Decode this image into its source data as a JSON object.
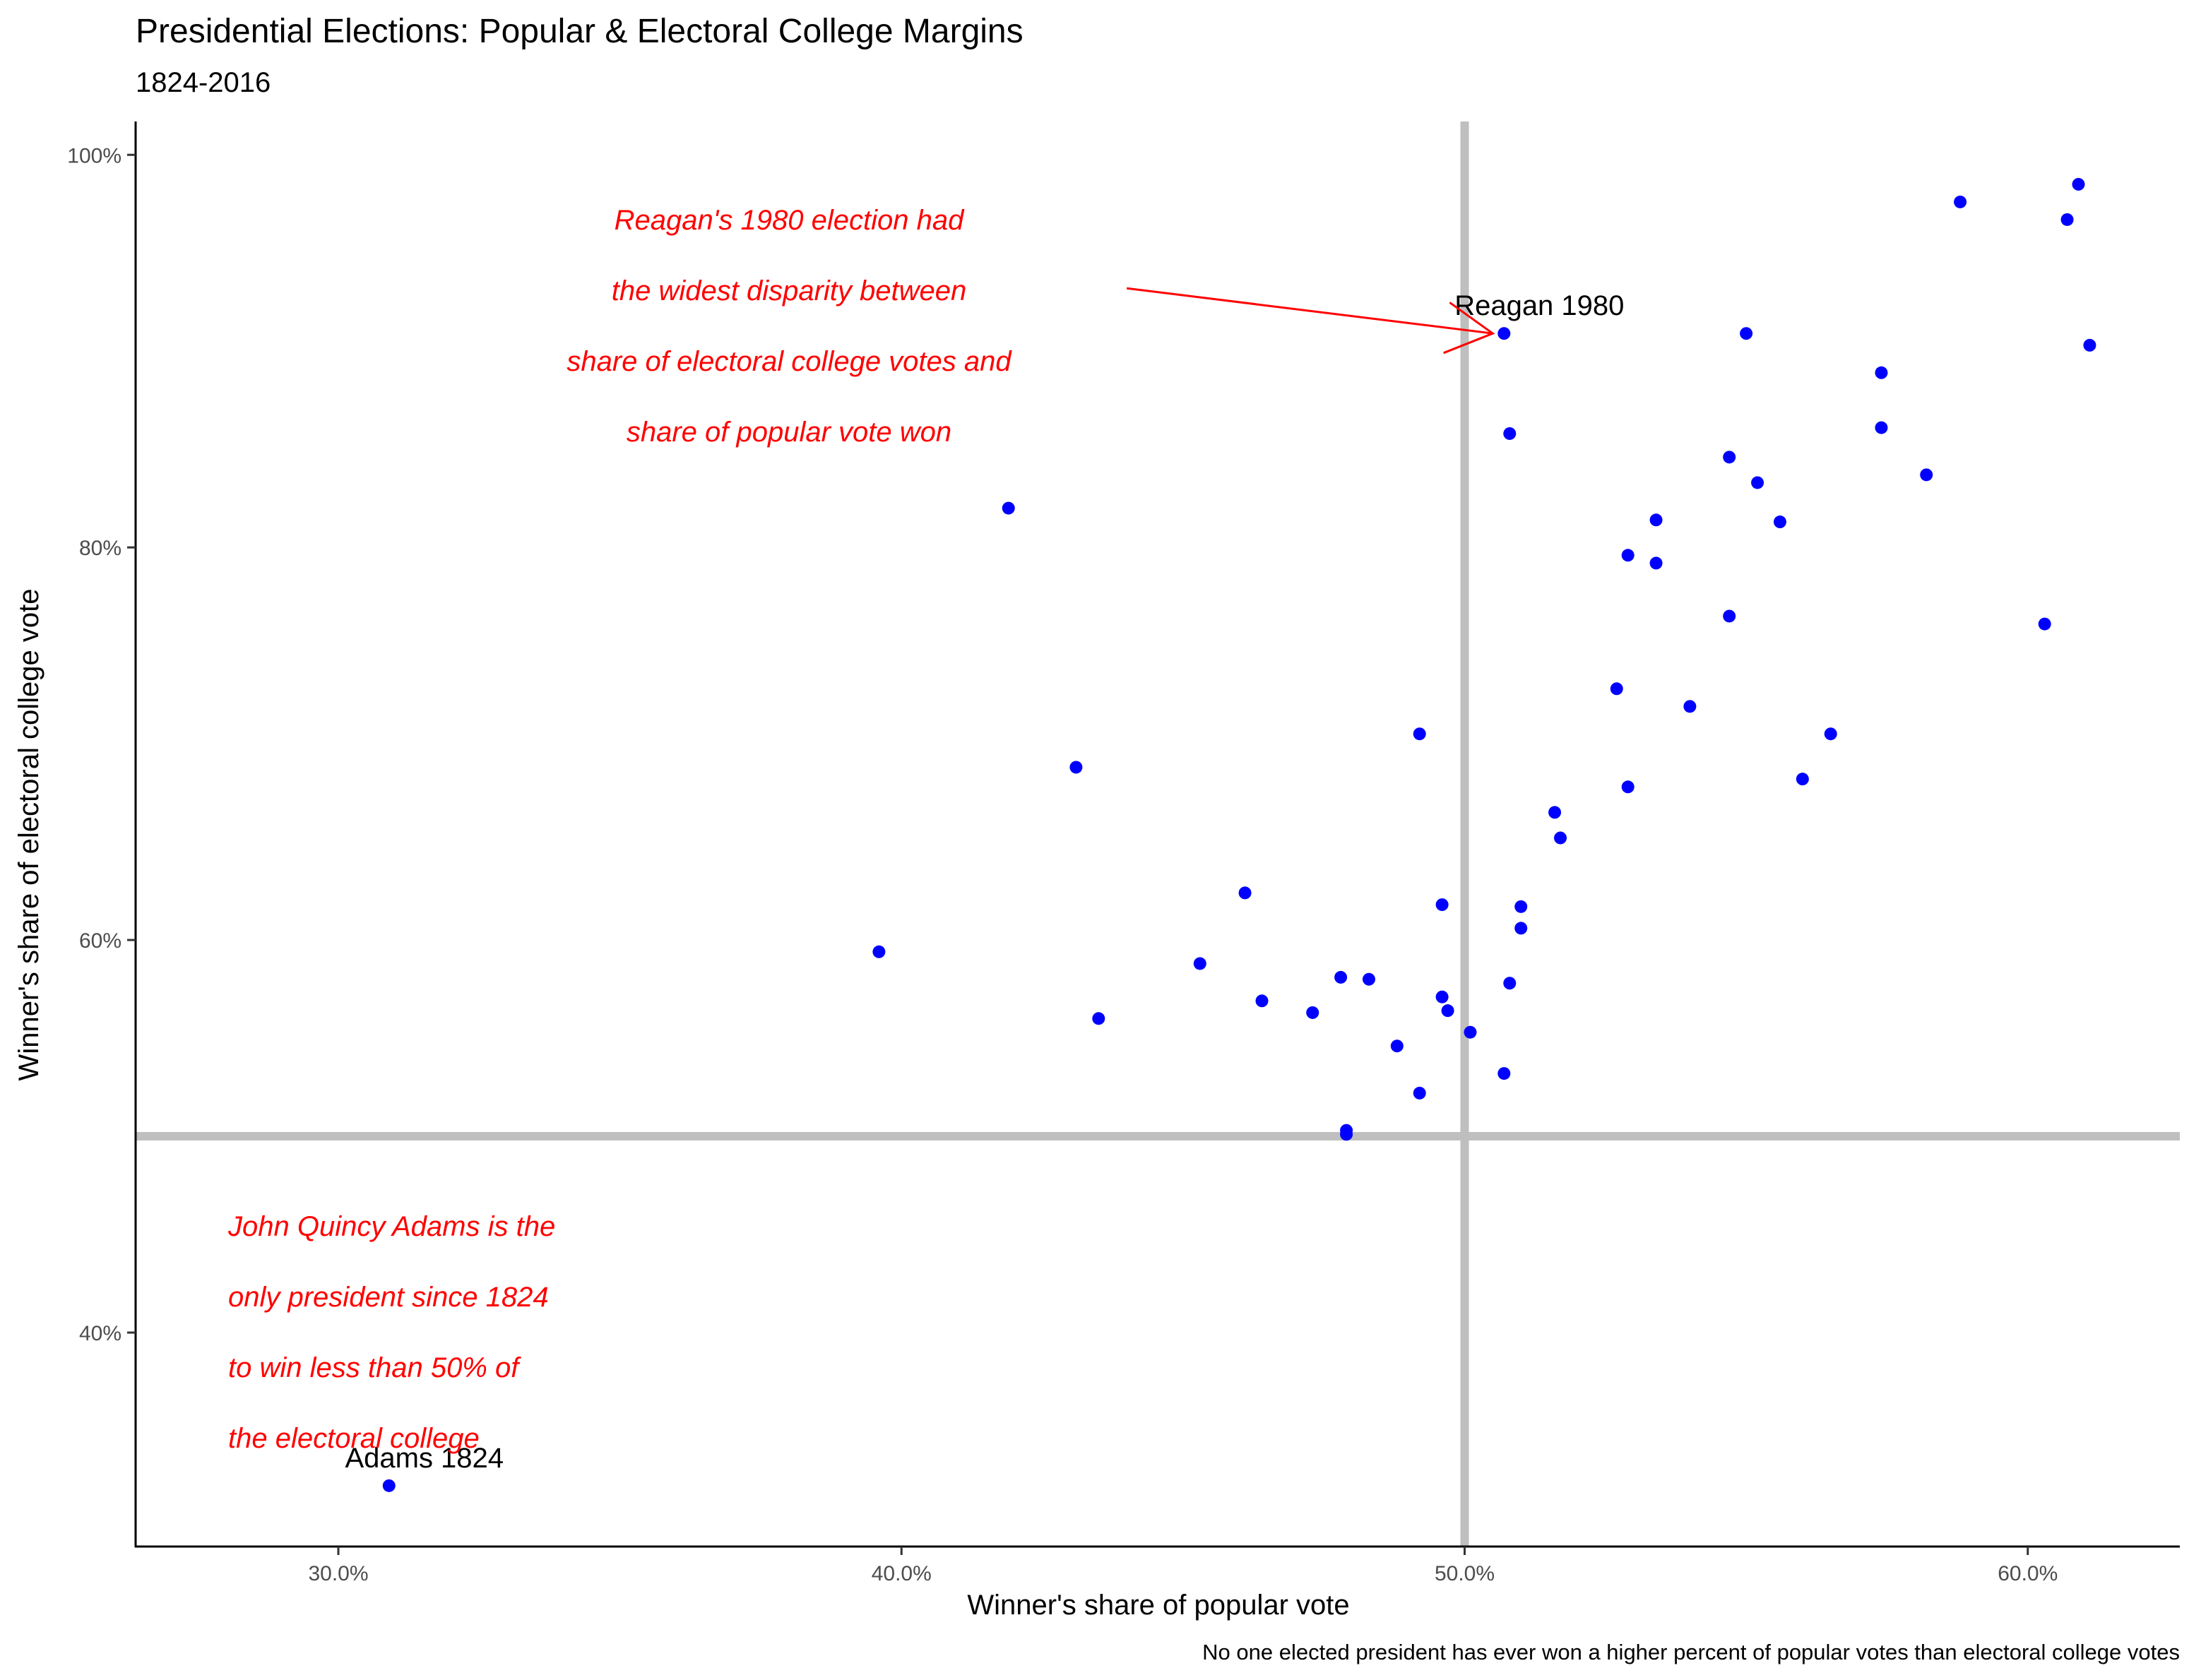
{
  "chart_data": {
    "type": "scatter",
    "title": "Presidential Elections: Popular & Electoral College Margins",
    "subtitle": "1824-2016",
    "xlabel": "Winner's share of popular vote",
    "ylabel": "Winner's share of electoral college vote",
    "caption": "No one elected president has ever won a higher percent of popular votes than electoral college votes",
    "xlim": [
      0.264,
      0.627
    ],
    "ylim": [
      0.291,
      1.017
    ],
    "x_ticks": [
      0.3,
      0.4,
      0.5,
      0.6
    ],
    "x_tick_labels": [
      "30.0%",
      "40.0%",
      "50.0%",
      "60.0%"
    ],
    "y_ticks": [
      0.4,
      0.6,
      0.8,
      1.0
    ],
    "y_tick_labels": [
      "40%",
      "60%",
      "80%",
      "100%"
    ],
    "reference_lines": {
      "x": 0.5,
      "y": 0.5,
      "color": "#bfbfbf"
    },
    "point_color": "#0000ff",
    "grid": false,
    "points": [
      {
        "x": 0.309,
        "y": 0.322
      },
      {
        "x": 0.396,
        "y": 0.594
      },
      {
        "x": 0.419,
        "y": 0.82
      },
      {
        "x": 0.431,
        "y": 0.688
      },
      {
        "x": 0.435,
        "y": 0.56
      },
      {
        "x": 0.453,
        "y": 0.588
      },
      {
        "x": 0.461,
        "y": 0.624
      },
      {
        "x": 0.464,
        "y": 0.569
      },
      {
        "x": 0.473,
        "y": 0.563
      },
      {
        "x": 0.478,
        "y": 0.581
      },
      {
        "x": 0.479,
        "y": 0.503
      },
      {
        "x": 0.479,
        "y": 0.501
      },
      {
        "x": 0.483,
        "y": 0.58
      },
      {
        "x": 0.488,
        "y": 0.546
      },
      {
        "x": 0.492,
        "y": 0.705
      },
      {
        "x": 0.492,
        "y": 0.522
      },
      {
        "x": 0.496,
        "y": 0.618
      },
      {
        "x": 0.496,
        "y": 0.571
      },
      {
        "x": 0.497,
        "y": 0.564
      },
      {
        "x": 0.501,
        "y": 0.553
      },
      {
        "x": 0.507,
        "y": 0.909
      },
      {
        "x": 0.507,
        "y": 0.532
      },
      {
        "x": 0.508,
        "y": 0.858
      },
      {
        "x": 0.508,
        "y": 0.578
      },
      {
        "x": 0.51,
        "y": 0.617
      },
      {
        "x": 0.51,
        "y": 0.606
      },
      {
        "x": 0.516,
        "y": 0.665
      },
      {
        "x": 0.517,
        "y": 0.652
      },
      {
        "x": 0.527,
        "y": 0.728
      },
      {
        "x": 0.529,
        "y": 0.796
      },
      {
        "x": 0.529,
        "y": 0.678
      },
      {
        "x": 0.534,
        "y": 0.814
      },
      {
        "x": 0.534,
        "y": 0.792
      },
      {
        "x": 0.54,
        "y": 0.719
      },
      {
        "x": 0.547,
        "y": 0.846
      },
      {
        "x": 0.547,
        "y": 0.765
      },
      {
        "x": 0.55,
        "y": 0.909
      },
      {
        "x": 0.552,
        "y": 0.833
      },
      {
        "x": 0.556,
        "y": 0.813
      },
      {
        "x": 0.56,
        "y": 0.682
      },
      {
        "x": 0.565,
        "y": 0.705
      },
      {
        "x": 0.574,
        "y": 0.889
      },
      {
        "x": 0.574,
        "y": 0.861
      },
      {
        "x": 0.582,
        "y": 0.837
      },
      {
        "x": 0.588,
        "y": 0.976
      },
      {
        "x": 0.603,
        "y": 0.761
      },
      {
        "x": 0.607,
        "y": 0.967
      },
      {
        "x": 0.609,
        "y": 0.985
      },
      {
        "x": 0.611,
        "y": 0.903
      }
    ],
    "point_labels": [
      {
        "text": "Reagan 1980",
        "x": 0.507,
        "y": 0.909
      },
      {
        "text": "Adams 1824",
        "x": 0.309,
        "y": 0.322
      }
    ],
    "annotations": [
      {
        "lines": [
          "Reagan's 1980 election had",
          "the widest disparity between",
          "share of electoral college votes and",
          "share of popular vote won"
        ],
        "color": "#ff0000",
        "arrow_from": {
          "x": 0.44,
          "y": 0.932
        },
        "arrow_to": {
          "x": 0.505,
          "y": 0.909
        }
      },
      {
        "lines": [
          "John Quincy Adams is the",
          "only president since 1824",
          "to win less than 50% of",
          "the electoral college"
        ],
        "color": "#ff0000"
      }
    ]
  }
}
